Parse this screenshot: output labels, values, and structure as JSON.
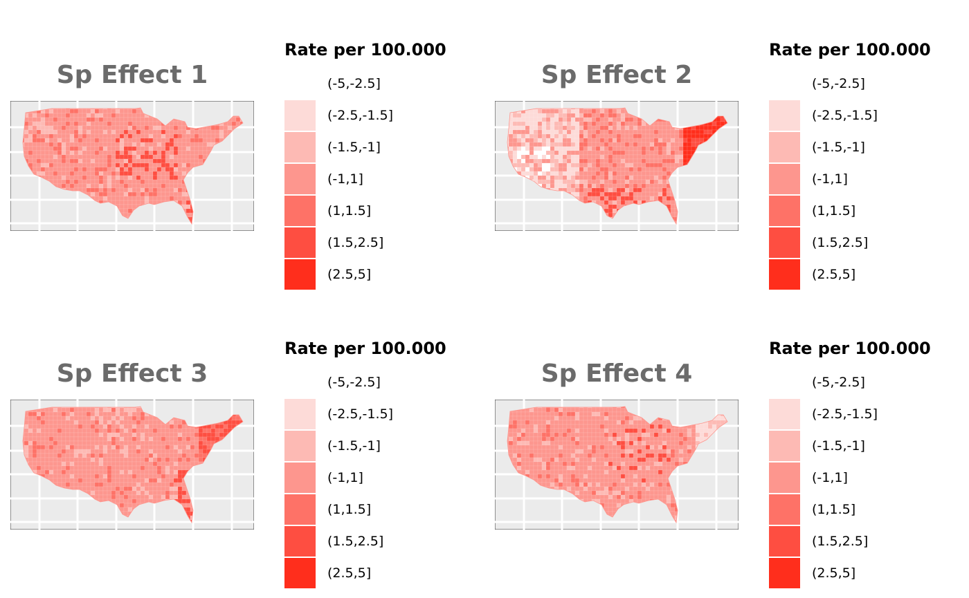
{
  "panels": [
    {
      "title": "Sp Effect 1",
      "legend_title": "Rate per 100.000",
      "pattern": "mid-dominant, darker clusters in midwest and florida"
    },
    {
      "title": "Sp Effect 2",
      "legend_title": "Rate per 100.000",
      "pattern": "light west, dark northeast and gulf coast"
    },
    {
      "title": "Sp Effect 3",
      "legend_title": "Rate per 100.000",
      "pattern": "mid-dominant, darker northeast and southeast coast"
    },
    {
      "title": "Sp Effect 4",
      "legend_title": "Rate per 100.000",
      "pattern": "mid-dominant, lighter northeast, darker midwest"
    }
  ],
  "legend": {
    "categories": [
      {
        "label": "(-5,-2.5]",
        "color": "#ffffff"
      },
      {
        "label": "(-2.5,-1.5]",
        "color": "#fddbd8"
      },
      {
        "label": "(-1.5,-1]",
        "color": "#fdbab4"
      },
      {
        "label": "(-1,1]",
        "color": "#fd968e"
      },
      {
        "label": "(1,1.5]",
        "color": "#fe7267"
      },
      {
        "label": "(1.5,2.5]",
        "color": "#fe4e41"
      },
      {
        "label": "(2.5,5]",
        "color": "#ff2e1c"
      }
    ]
  },
  "map_style": {
    "panel_background": "#ebebeb",
    "grid_color": "#ffffff",
    "border_color": "#333333"
  }
}
